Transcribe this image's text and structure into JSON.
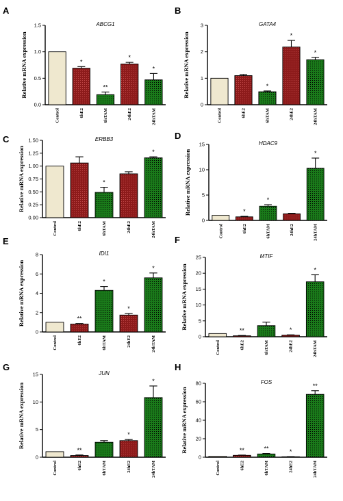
{
  "colors": {
    "control": "#efe8cf",
    "e2": "#8d1b1b",
    "e2_hatch": "#c04848",
    "tam": "#1a7a1a",
    "tam_hatch": "#000000",
    "axis": "#000000"
  },
  "chart_data": [
    {
      "panel": "A",
      "type": "bar",
      "title": "ABCG1",
      "ylabel": "Relative mRNA expression",
      "categories": [
        "Control",
        "6hE2",
        "6hTAM",
        "24hE2",
        "24hTAM"
      ],
      "values": [
        1.0,
        0.69,
        0.19,
        0.77,
        0.47
      ],
      "errors": [
        0,
        0.03,
        0.05,
        0.03,
        0.12
      ],
      "significance": [
        "",
        "*",
        "**",
        "*",
        "*"
      ],
      "ylim": [
        0,
        1.5
      ],
      "yticks": [
        0.0,
        0.5,
        1.0,
        1.5
      ],
      "ytick_labels": [
        "0.0",
        "0.5",
        "1.0",
        "1.5"
      ]
    },
    {
      "panel": "B",
      "type": "bar",
      "title": "GATA4",
      "ylabel": "Relative mRNA expression",
      "categories": [
        "Control",
        "6hE2",
        "6hTAM",
        "24hE2",
        "24hTAM"
      ],
      "values": [
        1.0,
        1.1,
        0.49,
        2.18,
        1.7
      ],
      "errors": [
        0,
        0.04,
        0.03,
        0.25,
        0.09
      ],
      "significance": [
        "",
        "",
        "*",
        "*",
        "*"
      ],
      "ylim": [
        0,
        3
      ],
      "yticks": [
        0,
        1,
        2,
        3
      ],
      "ytick_labels": [
        "0",
        "1",
        "2",
        "3"
      ]
    },
    {
      "panel": "C",
      "type": "bar",
      "title": "ERBB3",
      "ylabel": "Relative mRNA expression",
      "categories": [
        "Control",
        "6hE2",
        "6hTAM",
        "24hE2",
        "24hTAM"
      ],
      "values": [
        1.0,
        1.06,
        0.49,
        0.85,
        1.16
      ],
      "errors": [
        0,
        0.12,
        0.1,
        0.04,
        0.02
      ],
      "significance": [
        "",
        "",
        "*",
        "",
        "*"
      ],
      "ylim": [
        0,
        1.5
      ],
      "yticks": [
        0.0,
        0.25,
        0.5,
        0.75,
        1.0,
        1.25,
        1.5
      ],
      "ytick_labels": [
        "0.00",
        "0.25",
        "0.50",
        "0.75",
        "1.00",
        "1.25",
        "1.50"
      ]
    },
    {
      "panel": "D",
      "type": "bar",
      "title": "HDAC9",
      "ylabel": "Relative mRNA expression",
      "categories": [
        "Control",
        "6hE2",
        "6hTAM",
        "24hE2",
        "24hTAM"
      ],
      "values": [
        1.0,
        0.7,
        2.8,
        1.3,
        10.3
      ],
      "errors": [
        0,
        0.1,
        0.3,
        0.1,
        2.0
      ],
      "significance": [
        "",
        "*",
        "*",
        "",
        "*"
      ],
      "ylim": [
        0,
        15
      ],
      "yticks": [
        0,
        5,
        10,
        15
      ],
      "ytick_labels": [
        "0",
        "5",
        "10",
        "15"
      ]
    },
    {
      "panel": "E",
      "type": "bar",
      "title": "IDI1",
      "ylabel": "Relative mRNA expression",
      "categories": [
        "Control",
        "6hE2",
        "6hTAM",
        "24hE2",
        "24hTAM"
      ],
      "values": [
        1.0,
        0.82,
        4.3,
        1.75,
        5.6
      ],
      "errors": [
        0,
        0.05,
        0.4,
        0.15,
        0.5
      ],
      "significance": [
        "",
        "**",
        "*",
        "*",
        "*"
      ],
      "ylim": [
        0,
        8
      ],
      "yticks": [
        0,
        2,
        4,
        6,
        8
      ],
      "ytick_labels": [
        "0",
        "2",
        "4",
        "6",
        "8"
      ]
    },
    {
      "panel": "F",
      "type": "bar",
      "title": "MTIF",
      "ylabel": "Relative mRNA expression",
      "categories": [
        "Control",
        "6hE2",
        "6hTAM",
        "24hE2",
        "24hTAM"
      ],
      "values": [
        1.0,
        0.3,
        3.5,
        0.5,
        17.3
      ],
      "errors": [
        0,
        0.1,
        1.1,
        0.1,
        2.2
      ],
      "significance": [
        "",
        "**",
        "",
        "*",
        "*"
      ],
      "ylim": [
        0,
        25
      ],
      "yticks": [
        0,
        5,
        10,
        15,
        20,
        25
      ],
      "ytick_labels": [
        "0",
        "5",
        "10",
        "15",
        "20",
        "25"
      ]
    },
    {
      "panel": "G",
      "type": "bar",
      "title": "JUN",
      "ylabel": "Relative mRNA expression",
      "categories": [
        "Control",
        "6hE2",
        "6hTAM",
        "24hE2",
        "24hTAM"
      ],
      "values": [
        1.0,
        0.3,
        2.7,
        3.0,
        10.8
      ],
      "errors": [
        0,
        0.1,
        0.3,
        0.2,
        2.1
      ],
      "significance": [
        "",
        "**",
        "",
        "*",
        "*"
      ],
      "ylim": [
        0,
        15
      ],
      "yticks": [
        0,
        5,
        10,
        15
      ],
      "ytick_labels": [
        "0",
        "5",
        "10",
        "15"
      ]
    },
    {
      "panel": "H",
      "type": "bar",
      "title": "FOS",
      "ylabel": "Relative mRNA expression",
      "categories": [
        "Control",
        "6hE2",
        "6hTAM",
        "24hE2",
        "24hTAM"
      ],
      "values": [
        1.0,
        2.0,
        3.5,
        0.5,
        68.0
      ],
      "errors": [
        0,
        0.3,
        0.5,
        0.1,
        4.0
      ],
      "significance": [
        "",
        "**",
        "**",
        "*",
        "**"
      ],
      "ylim": [
        0,
        80
      ],
      "yticks": [
        0,
        20,
        40,
        60,
        80
      ],
      "ytick_labels": [
        "0",
        "20",
        "40",
        "60",
        "80"
      ]
    }
  ]
}
